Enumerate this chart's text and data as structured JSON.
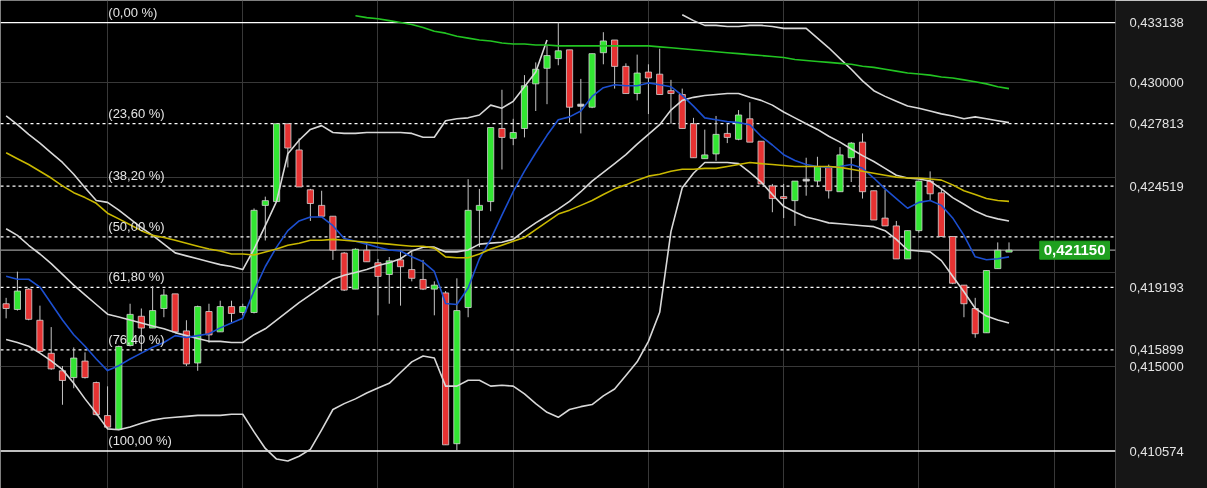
{
  "chart_data": {
    "type": "candlestick",
    "categories": [
      null,
      null,
      null,
      null,
      null,
      null,
      null,
      null,
      null,
      null,
      null,
      null,
      null,
      null,
      null,
      null,
      null,
      null,
      null,
      null,
      null,
      null,
      null,
      null,
      null,
      null,
      null,
      null,
      null,
      null,
      null,
      null,
      null,
      null,
      null,
      null,
      null,
      null,
      null,
      null,
      null,
      null,
      null,
      null,
      null,
      null,
      null,
      null,
      null,
      null,
      null,
      null,
      null,
      null,
      null,
      null,
      null,
      null,
      null,
      null,
      null,
      null,
      null,
      null,
      null,
      null,
      null,
      null,
      null,
      null,
      null,
      null,
      null,
      null,
      null,
      null,
      null,
      null,
      null,
      null,
      null,
      null,
      null,
      null,
      null,
      null,
      null,
      null,
      null,
      null
    ],
    "ohlc": [
      [
        0.41833,
        0.41864,
        0.41756,
        0.41808
      ],
      [
        0.41803,
        0.42002,
        0.41797,
        0.419
      ],
      [
        0.4191,
        0.41915,
        0.41746,
        0.41751
      ],
      [
        0.41746,
        0.41823,
        0.41577,
        0.41582
      ],
      [
        0.41572,
        0.4171,
        0.41485,
        0.4149
      ],
      [
        0.4148,
        0.41505,
        0.41301,
        0.41429
      ],
      [
        0.41444,
        0.41603,
        0.41388,
        0.41547
      ],
      [
        0.41531,
        0.41577,
        0.41439,
        0.41444
      ],
      [
        0.41418,
        0.41423,
        0.41244,
        0.41249
      ],
      [
        0.41244,
        0.41398,
        0.41178,
        0.41183
      ],
      [
        0.41172,
        0.41613,
        0.41172,
        0.41608
      ],
      [
        0.41613,
        0.41833,
        0.41608,
        0.41777
      ],
      [
        0.41767,
        0.41808,
        0.41582,
        0.41705
      ],
      [
        0.41705,
        0.41926,
        0.41705,
        0.41797
      ],
      [
        0.41808,
        0.4191,
        0.41762,
        0.41879
      ],
      [
        0.41885,
        0.41885,
        0.4168,
        0.41685
      ],
      [
        0.4169,
        0.41746,
        0.41505,
        0.41516
      ],
      [
        0.41521,
        0.41823,
        0.4148,
        0.41818
      ],
      [
        0.41792,
        0.41833,
        0.41628,
        0.41669
      ],
      [
        0.41685,
        0.41849,
        0.41685,
        0.41818
      ],
      [
        0.41818,
        0.41849,
        0.41736,
        0.41782
      ],
      [
        0.41787,
        0.41833,
        0.41772,
        0.41818
      ],
      [
        0.41787,
        0.42335,
        0.41782,
        0.42325
      ],
      [
        0.42351,
        0.42397,
        0.42166,
        0.42376
      ],
      [
        0.42371,
        0.42781,
        0.42371,
        0.42781
      ],
      [
        0.42781,
        0.42781,
        0.42551,
        0.42653
      ],
      [
        0.42643,
        0.42704,
        0.42448,
        0.42448
      ],
      [
        0.42433,
        0.42438,
        0.42269,
        0.42361
      ],
      [
        0.42351,
        0.42428,
        0.42294,
        0.42294
      ],
      [
        0.42294,
        0.42294,
        0.42064,
        0.42115
      ],
      [
        0.421,
        0.42105,
        0.419,
        0.41905
      ],
      [
        0.4191,
        0.42125,
        0.4191,
        0.4212
      ],
      [
        0.42115,
        0.42156,
        0.42054,
        0.42054
      ],
      [
        0.42049,
        0.42069,
        0.41772,
        0.41977
      ],
      [
        0.41987,
        0.42079,
        0.41833,
        0.42059
      ],
      [
        0.42064,
        0.42115,
        0.41823,
        0.42028
      ],
      [
        0.42013,
        0.42105,
        0.41951,
        0.41967
      ],
      [
        0.41961,
        0.42064,
        0.41905,
        0.4191
      ],
      [
        0.4191,
        0.41951,
        0.41772,
        0.41931
      ],
      [
        0.4189,
        0.419,
        0.4109,
        0.4109
      ],
      [
        0.41096,
        0.41967,
        0.41057,
        0.41797
      ],
      [
        0.41813,
        0.42489,
        0.41762,
        0.42325
      ],
      [
        0.42325,
        0.42438,
        0.42131,
        0.42351
      ],
      [
        0.42371,
        0.42761,
        0.4232,
        0.42761
      ],
      [
        0.42756,
        0.4296,
        0.4254,
        0.42709
      ],
      [
        0.42704,
        0.42807,
        0.42668,
        0.42735
      ],
      [
        0.42756,
        0.43037,
        0.42709,
        0.42981
      ],
      [
        0.42991,
        0.43104,
        0.42848,
        0.43068
      ],
      [
        0.43073,
        0.43196,
        0.42884,
        0.4314
      ],
      [
        0.43124,
        0.43314,
        0.43089,
        0.43165
      ],
      [
        0.4317,
        0.4317,
        0.42786,
        0.42868
      ],
      [
        0.42873,
        0.43017,
        0.4273,
        0.42884
      ],
      [
        0.42868,
        0.4315,
        0.42863,
        0.4315
      ],
      [
        0.43155,
        0.43263,
        0.43094,
        0.43217
      ],
      [
        0.43222,
        0.43222,
        0.42966,
        0.43083
      ],
      [
        0.43083,
        0.43099,
        0.4294,
        0.4294
      ],
      [
        0.4294,
        0.43145,
        0.42904,
        0.43048
      ],
      [
        0.43053,
        0.43094,
        0.42832,
        0.43022
      ],
      [
        0.43042,
        0.43176,
        0.42935,
        0.42935
      ],
      [
        0.42955,
        0.43012,
        0.42781,
        0.4294
      ],
      [
        0.42935,
        0.42966,
        0.42756,
        0.42756
      ],
      [
        0.42781,
        0.42812,
        0.42602,
        0.42602
      ],
      [
        0.42597,
        0.4275,
        0.42597,
        0.42617
      ],
      [
        0.42622,
        0.42822,
        0.42586,
        0.42725
      ],
      [
        0.4273,
        0.42781,
        0.42679,
        0.42709
      ],
      [
        0.42699,
        0.42853,
        0.42694,
        0.42827
      ],
      [
        0.42807,
        0.42894,
        0.42684,
        0.42684
      ],
      [
        0.42689,
        0.42689,
        0.42464,
        0.42464
      ],
      [
        0.42453,
        0.42464,
        0.42315,
        0.42387
      ],
      [
        0.42397,
        0.42464,
        0.42284,
        0.42387
      ],
      [
        0.42376,
        0.42479,
        0.42243,
        0.42479
      ],
      [
        0.42479,
        0.42602,
        0.42402,
        0.42489
      ],
      [
        0.42479,
        0.42607,
        0.42448,
        0.42556
      ],
      [
        0.42556,
        0.42566,
        0.42387,
        0.42428
      ],
      [
        0.42423,
        0.42658,
        0.42423,
        0.42617
      ],
      [
        0.42602,
        0.42684,
        0.42474,
        0.42679
      ],
      [
        0.42684,
        0.4273,
        0.42387,
        0.42423
      ],
      [
        0.42428,
        0.42428,
        0.42274,
        0.42274
      ],
      [
        0.42284,
        0.42433,
        0.42243,
        0.42243
      ],
      [
        0.42243,
        0.42269,
        0.42069,
        0.42069
      ],
      [
        0.42069,
        0.42218,
        0.42069,
        0.42218
      ],
      [
        0.42218,
        0.42479,
        0.42207,
        0.42479
      ],
      [
        0.42479,
        0.4253,
        0.42376,
        0.42412
      ],
      [
        0.42417,
        0.42438,
        0.42187,
        0.42187
      ],
      [
        0.42187,
        0.42187,
        0.41936,
        0.41941
      ],
      [
        0.41931,
        0.41931,
        0.41762,
        0.41833
      ],
      [
        0.41808,
        0.41864,
        0.41654,
        0.41675
      ],
      [
        0.4168,
        0.42008,
        0.4168,
        0.42008
      ],
      [
        0.42018,
        0.42156,
        0.42018,
        0.42115
      ],
      [
        0.42105,
        0.42156,
        0.42105,
        0.42115
      ]
    ],
    "colors": [
      "#e63232",
      "#32e632",
      "#e63232",
      "#e63232",
      "#e63232",
      "#e63232",
      "#32e632",
      "#e63232",
      "#e63232",
      "#e63232",
      "#32e632",
      "#32e632",
      "#e63232",
      "#32e632",
      "#32e632",
      "#e63232",
      "#e63232",
      "#32e632",
      "#e63232",
      "#32e632",
      "#e63232",
      "#32e632",
      "#32e632",
      "#32e632",
      "#32e632",
      "#e63232",
      "#e63232",
      "#e63232",
      "#e63232",
      "#e63232",
      "#e63232",
      "#32e632",
      "#e63232",
      "#e63232",
      "#32e632",
      "#e63232",
      "#e63232",
      "#e63232",
      "#32e632",
      "#e63232",
      "#32e632",
      "#32e632",
      "#32e632",
      "#32e632",
      "#e63232",
      "#32e632",
      "#32e632",
      "#32e632",
      "#32e632",
      "#32e632",
      "#e63232",
      "#cccccc",
      "#32e632",
      "#32e632",
      "#e63232",
      "#e63232",
      "#32e632",
      "#e63232",
      "#e63232",
      "#e63232",
      "#e63232",
      "#e63232",
      "#32e632",
      "#32e632",
      "#e63232",
      "#32e632",
      "#e63232",
      "#e63232",
      "#e63232",
      "#e63232",
      "#32e632",
      "#cccccc",
      "#32e632",
      "#e63232",
      "#32e632",
      "#32e632",
      "#e63232",
      "#e63232",
      "#e63232",
      "#e63232",
      "#32e632",
      "#32e632",
      "#e63232",
      "#e63232",
      "#e63232",
      "#e63232",
      "#e63232",
      "#32e632",
      "#32e632",
      "#32e632"
    ],
    "series": [
      {
        "type": "line",
        "color": "#d8d8d8",
        "values": [
          0.42822,
          0.42776,
          0.42725,
          0.42679,
          0.42628,
          0.42577,
          0.42515,
          0.42444,
          0.42377,
          0.42367,
          0.42326,
          0.4228,
          0.42234,
          0.42193,
          0.42147,
          0.42101,
          0.42085,
          0.4207,
          0.42054,
          0.42039,
          0.42029,
          0.42013,
          0.42121,
          0.42244,
          0.42372,
          0.42623,
          0.42694,
          0.42751,
          0.42771,
          0.42735,
          0.4273,
          0.4273,
          0.42735,
          0.42735,
          0.42735,
          0.42735,
          0.4273,
          0.4271,
          0.4271,
          0.42797,
          0.42807,
          0.42812,
          0.42827,
          0.42879,
          0.42863,
          0.42899,
          0.42976,
          0.43053,
          0.43222,
          null,
          null,
          null,
          null,
          null,
          null,
          null,
          null,
          null,
          null,
          null,
          0.43355,
          0.43324,
          0.43299,
          0.43299,
          0.43293,
          0.43293,
          0.43299,
          0.43299,
          0.43293,
          0.43283,
          0.43283,
          0.43283,
          0.43232,
          0.43181,
          0.43124,
          0.43068,
          0.43007,
          0.42955,
          0.42925,
          0.42899,
          0.42874,
          0.42863,
          0.42848,
          0.42833,
          0.42822,
          0.42807,
          0.42817,
          0.42807,
          0.42797,
          0.42787
        ]
      },
      {
        "type": "line",
        "color": "#d8d8d8",
        "values": [
          0.42228,
          0.42193,
          0.42141,
          0.42095,
          0.42044,
          0.41988,
          0.41931,
          0.4188,
          0.41829,
          0.41778,
          0.41763,
          0.41747,
          0.41732,
          0.41716,
          0.41701,
          0.41681,
          0.41665,
          0.4165,
          0.41635,
          0.41635,
          0.41629,
          0.41629,
          0.4167,
          0.41701,
          0.41747,
          0.41793,
          0.41839,
          0.4188,
          0.41921,
          0.41962,
          0.41983,
          0.41998,
          0.42013,
          0.42034,
          0.42049,
          0.4207,
          0.42111,
          0.42131,
          0.42131,
          0.42106,
          0.42106,
          0.42116,
          0.42147,
          0.42152,
          0.42157,
          0.42172,
          0.42218,
          0.42259,
          0.42295,
          0.42331,
          0.42372,
          0.42423,
          0.42479,
          0.42525,
          0.42571,
          0.42618,
          0.42674,
          0.42725,
          0.42776,
          0.42853,
          0.42904,
          0.4292,
          0.4293,
          0.42935,
          0.4294,
          0.4294,
          0.4292,
          0.42904,
          0.42879,
          0.42843,
          0.42812,
          0.42781,
          0.42751,
          0.42715,
          0.42684,
          0.42648,
          0.42613,
          0.42582,
          0.42546,
          0.4251,
          0.42495,
          0.4249,
          0.42479,
          0.42438,
          0.42392,
          0.42357,
          0.42321,
          0.42295,
          0.4228,
          0.42269
        ]
      },
      {
        "type": "line",
        "color": "#d8d8d8",
        "values": [
          0.41645,
          0.41629,
          0.41609,
          0.41573,
          0.41532,
          0.41486,
          0.41414,
          0.41332,
          0.41256,
          0.41174,
          0.41169,
          0.41184,
          0.41204,
          0.4122,
          0.4123,
          0.41235,
          0.4124,
          0.41245,
          0.41245,
          0.41245,
          0.41251,
          0.41251,
          0.41158,
          0.41071,
          0.41015,
          0.41005,
          0.4103,
          0.41066,
          0.41169,
          0.41276,
          0.41307,
          0.41332,
          0.41363,
          0.41389,
          0.41414,
          0.41471,
          0.41527,
          0.41558,
          0.41547,
          0.41399,
          0.41399,
          0.4143,
          0.4143,
          0.41399,
          0.41404,
          0.41399,
          0.41358,
          0.41307,
          0.41261,
          0.41235,
          0.41276,
          0.41291,
          0.41302,
          0.41348,
          0.41384,
          0.41455,
          0.41527,
          0.41635,
          0.41788,
          0.42213,
          0.42444,
          0.4252,
          0.42577,
          0.42577,
          0.42577,
          0.42571,
          0.42525,
          0.42474,
          0.42408,
          0.42346,
          0.42316,
          0.4229,
          0.42275,
          0.42259,
          0.42254,
          0.42249,
          0.42244,
          0.42239,
          0.42218,
          0.42172,
          0.42116,
          0.42111,
          0.42106,
          0.4206,
          0.41978,
          0.41896,
          0.41809,
          0.41768,
          0.41747,
          0.41732
        ]
      },
      {
        "type": "line",
        "color": "#1c4fd0",
        "values": [
          0.41978,
          0.41962,
          0.41962,
          0.41921,
          0.41834,
          0.41747,
          0.4167,
          0.41609,
          0.41542,
          0.41481,
          0.41507,
          0.41542,
          0.41573,
          0.41604,
          0.41629,
          0.41665,
          0.41655,
          0.41665,
          0.41675,
          0.41706,
          0.41732,
          0.41757,
          0.41901,
          0.42029,
          0.42131,
          0.42218,
          0.42269,
          0.4229,
          0.4229,
          0.42244,
          0.42177,
          0.42162,
          0.42147,
          0.42131,
          0.42116,
          0.42111,
          0.4208,
          0.42054,
          0.42003,
          0.41834,
          0.41829,
          0.41916,
          0.4207,
          0.42172,
          0.423,
          0.42423,
          0.42531,
          0.42628,
          0.4272,
          0.42802,
          0.42817,
          0.42848,
          0.42925,
          0.42971,
          0.42986,
          0.42981,
          0.42981,
          0.42996,
          0.42986,
          0.42976,
          0.4293,
          0.42874,
          0.42812,
          0.42802,
          0.42792,
          0.42787,
          0.42776,
          0.42715,
          0.42669,
          0.42618,
          0.42587,
          0.42566,
          0.42556,
          0.42551,
          0.42556,
          0.42566,
          0.42546,
          0.42495,
          0.42438,
          0.42387,
          0.42336,
          0.42367,
          0.42377,
          0.42351,
          0.42285,
          0.42193,
          0.4208,
          0.42065,
          0.4207,
          0.4208
        ]
      },
      {
        "type": "line",
        "color": "#c9b800",
        "values": [
          0.42628,
          0.42597,
          0.42566,
          0.42531,
          0.42495,
          0.42454,
          0.42418,
          0.42392,
          0.42362,
          0.4231,
          0.4228,
          0.42249,
          0.42218,
          0.42193,
          0.42182,
          0.42167,
          0.42152,
          0.42136,
          0.42121,
          0.42111,
          0.42095,
          0.42095,
          0.4209,
          0.42106,
          0.42121,
          0.42141,
          0.42152,
          0.42167,
          0.42167,
          0.42172,
          0.42167,
          0.42162,
          0.42157,
          0.42152,
          0.42147,
          0.42141,
          0.42136,
          0.42136,
          0.42126,
          0.4208,
          0.42075,
          0.42075,
          0.42095,
          0.42121,
          0.42141,
          0.42162,
          0.42182,
          0.42223,
          0.42264,
          0.42305,
          0.42326,
          0.42351,
          0.42377,
          0.42408,
          0.42438,
          0.42459,
          0.42484,
          0.42505,
          0.42515,
          0.42531,
          0.42541,
          0.42541,
          0.42546,
          0.42546,
          0.42556,
          0.42566,
          0.42577,
          0.42571,
          0.42566,
          0.42561,
          0.42556,
          0.42556,
          0.42556,
          0.42556,
          0.42551,
          0.42541,
          0.42531,
          0.4252,
          0.4251,
          0.425,
          0.42495,
          0.42495,
          0.4249,
          0.42484,
          0.42459,
          0.42428,
          0.42408,
          0.42387,
          0.42377,
          0.42372
        ]
      },
      {
        "type": "line",
        "color": "#22c422",
        "values": [
          null,
          null,
          null,
          null,
          null,
          null,
          null,
          null,
          null,
          null,
          null,
          null,
          null,
          null,
          null,
          null,
          null,
          null,
          null,
          null,
          null,
          null,
          null,
          null,
          null,
          null,
          null,
          null,
          null,
          null,
          null,
          0.4335,
          0.4334,
          0.43334,
          0.43324,
          0.43314,
          0.43304,
          0.43288,
          0.43268,
          0.43258,
          0.43242,
          0.43232,
          0.43222,
          0.43217,
          0.43206,
          0.43201,
          0.43201,
          0.43196,
          0.43196,
          0.43191,
          0.43191,
          0.43191,
          0.43191,
          0.43191,
          0.43191,
          0.43191,
          0.43191,
          0.43191,
          0.43186,
          0.43181,
          0.43176,
          0.43171,
          0.43165,
          0.4316,
          0.43155,
          0.4315,
          0.43145,
          0.4314,
          0.43135,
          0.4313,
          0.43119,
          0.43114,
          0.43109,
          0.43104,
          0.43099,
          0.43094,
          0.43084,
          0.43078,
          0.43068,
          0.43058,
          0.43048,
          0.43043,
          0.43037,
          0.43027,
          0.43022,
          0.43012,
          0.43002,
          0.42991,
          0.42976,
          0.42966
        ]
      }
    ],
    "ylim": [
      0.4086,
      0.4343
    ],
    "yticks": [
      {
        "value": 0.433138,
        "label": "0,433138"
      },
      {
        "value": 0.43,
        "label": "0,430000"
      },
      {
        "value": 0.427813,
        "label": "0,427813"
      },
      {
        "value": 0.425,
        "label": null
      },
      {
        "value": 0.424519,
        "label": "0,424519"
      },
      {
        "value": 0.42,
        "label": null
      },
      {
        "value": 0.419193,
        "label": "0,419193"
      },
      {
        "value": 0.415899,
        "label": "0,415899"
      },
      {
        "value": 0.415,
        "label": "0,415000"
      },
      {
        "value": 0.410574,
        "label": "0,410574"
      }
    ],
    "ref_lines": [
      {
        "axis": "y",
        "value": 0.433138,
        "color": "#ffffff",
        "line_style": "solid"
      },
      {
        "axis": "y",
        "value": 0.427813,
        "color": "#ffffff",
        "line_style": "dashed"
      },
      {
        "axis": "y",
        "value": 0.424519,
        "color": "#ffffff",
        "line_style": "dashed"
      },
      {
        "axis": "y",
        "value": 0.421856,
        "color": "#ffffff",
        "line_style": "dashed"
      },
      {
        "axis": "y",
        "value": 0.419193,
        "color": "#ffffff",
        "line_style": "dashed"
      },
      {
        "axis": "y",
        "value": 0.415899,
        "color": "#ffffff",
        "line_style": "dashed"
      },
      {
        "axis": "y",
        "value": 0.410574,
        "color": "#ffffff",
        "line_style": "solid"
      },
      {
        "axis": "y",
        "value": 0.42115,
        "label": "0,421150",
        "color": "#9a9a9a",
        "line_style": "solid"
      }
    ],
    "annotations": [
      {
        "text": "(0,00 %)",
        "y": 0.433138
      },
      {
        "text": "(23,60 %)",
        "y": 0.427813
      },
      {
        "text": "(38,20 %)",
        "y": 0.424519
      },
      {
        "text": "(50,00 %)",
        "y": 0.421856
      },
      {
        "text": "(61,80 %)",
        "y": 0.419193
      },
      {
        "text": "(76,40 %)",
        "y": 0.415899
      },
      {
        "text": "(100,00 %)",
        "y": 0.410574
      }
    ],
    "grid": true,
    "tick_labels": "y"
  }
}
